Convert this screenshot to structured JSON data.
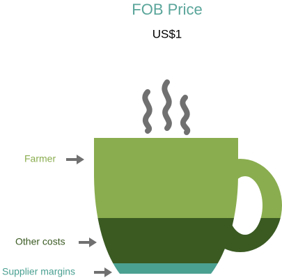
{
  "title": "FOB Price",
  "price": "US$1",
  "layers": [
    {
      "label": "Farmer"
    },
    {
      "label": "Other costs"
    },
    {
      "label": "Supplier margins"
    }
  ]
}
